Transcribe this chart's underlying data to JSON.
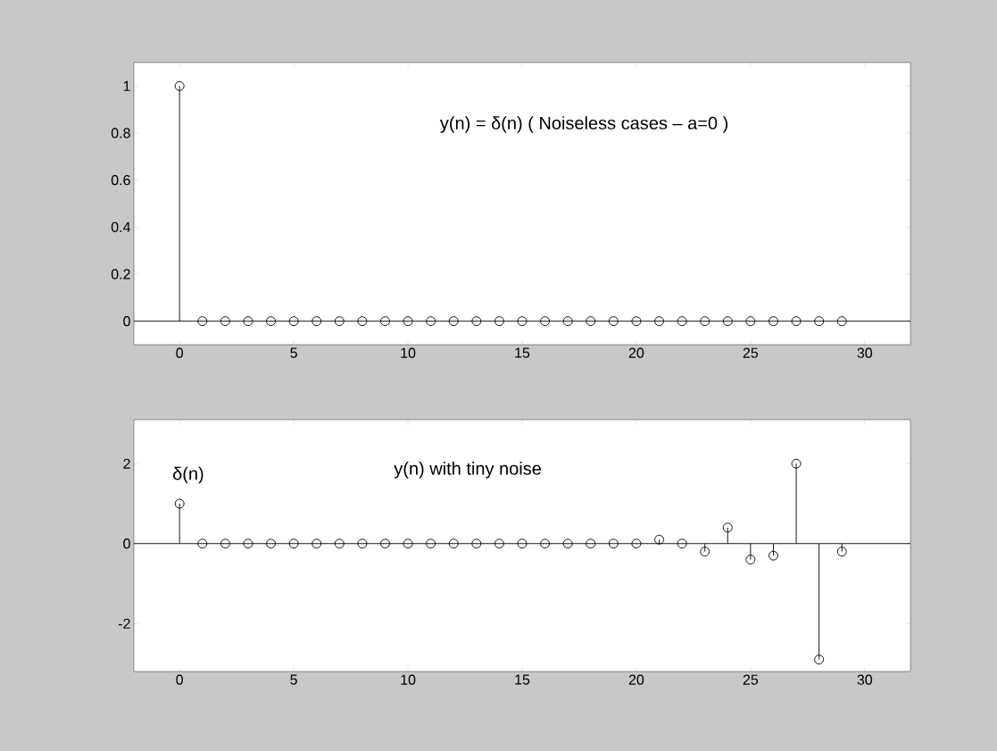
{
  "chart_data": [
    {
      "type": "lollipop",
      "x": [
        0,
        1,
        2,
        3,
        4,
        5,
        6,
        7,
        8,
        9,
        10,
        11,
        12,
        13,
        14,
        15,
        16,
        17,
        18,
        19,
        20,
        21,
        22,
        23,
        24,
        25,
        26,
        27,
        28,
        29
      ],
      "values": [
        1,
        0,
        0,
        0,
        0,
        0,
        0,
        0,
        0,
        0,
        0,
        0,
        0,
        0,
        0,
        0,
        0,
        0,
        0,
        0,
        0,
        0,
        0,
        0,
        0,
        0,
        0,
        0,
        0,
        0
      ],
      "color": "#000000",
      "marker": "circle",
      "xlim": [
        -2,
        32
      ],
      "ylim": [
        -0.1,
        1.1
      ],
      "xticks": [
        0,
        5,
        10,
        15,
        20,
        25,
        30
      ],
      "yticks": [
        0,
        0.2,
        0.4,
        0.6,
        0.8,
        1
      ],
      "ref_lines": [
        {
          "axis": "y",
          "value": 0
        }
      ],
      "annotations": [
        "y(n) = δ(n) ( Noiseless cases – a=0 )"
      ]
    },
    {
      "type": "lollipop",
      "x": [
        0,
        1,
        2,
        3,
        4,
        5,
        6,
        7,
        8,
        9,
        10,
        11,
        12,
        13,
        14,
        15,
        16,
        17,
        18,
        19,
        20,
        21,
        22,
        23,
        24,
        25,
        26,
        27,
        28,
        29
      ],
      "values": [
        1,
        0,
        0,
        0,
        0,
        0,
        0,
        0,
        0,
        0,
        0,
        0,
        0,
        0,
        0,
        0,
        0,
        0,
        0,
        0,
        0,
        0.1,
        0,
        -0.2,
        0.4,
        -0.4,
        -0.3,
        2,
        -2.9,
        -0.2
      ],
      "color": "#000000",
      "marker": "circle",
      "xlim": [
        -2,
        32
      ],
      "ylim": [
        -3.2,
        3.1
      ],
      "xticks": [
        0,
        5,
        10,
        15,
        20,
        25,
        30
      ],
      "yticks": [
        -2,
        0,
        2
      ],
      "ref_lines": [
        {
          "axis": "y",
          "value": 0
        }
      ],
      "annotations": [
        "δ(n)",
        "y(n) with tiny noise"
      ]
    }
  ]
}
